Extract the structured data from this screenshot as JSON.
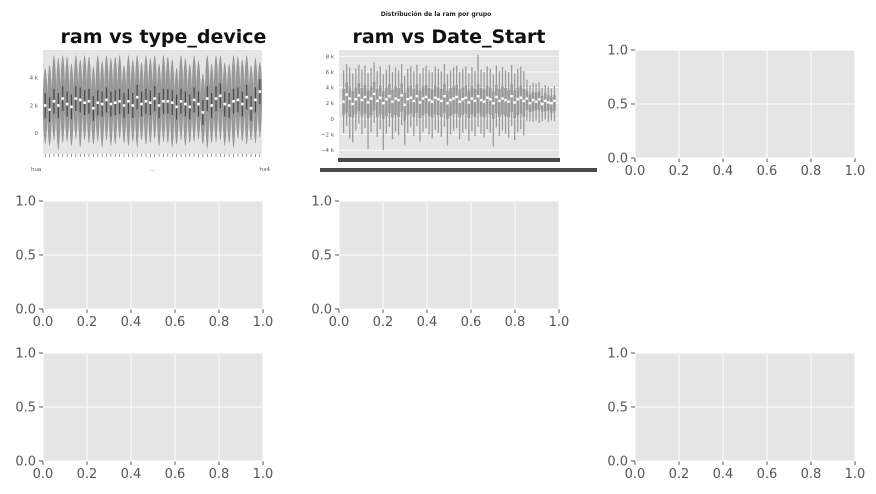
{
  "figure": {
    "suptitle": "Distribución de la ram por grupo",
    "background": "#ffffff",
    "axes_face": "#e5e5e5",
    "grid_color": "#ffffff",
    "violin_color": "#999999",
    "tick_color": "#555555"
  },
  "chart_data": [
    {
      "type": "violin",
      "title": "ram vs type_device",
      "xlabel": "",
      "ylabel": "",
      "ylim": [
        -1500,
        6000
      ],
      "yticks": [
        0,
        2000,
        4000
      ],
      "ytick_labels": [
        "0",
        "2 k",
        "4 k"
      ],
      "xtick_labels_visible": [
        "hua",
        "...",
        "hx4"
      ],
      "categories_count": 50,
      "series": [
        {
          "medians": [
            2000,
            1700,
            2300,
            2000,
            2500,
            2100,
            1900,
            2500,
            2400,
            2200,
            2300,
            1800,
            2200,
            2100,
            2400,
            2100,
            2200,
            2300,
            2000,
            2300,
            2000,
            2600,
            2100,
            2300,
            2200,
            2500,
            2000,
            2300,
            2300,
            2200,
            1900,
            2300,
            2100,
            1900,
            2400,
            2100,
            1500,
            2500,
            2000,
            2500,
            2700,
            2100,
            2000,
            2300,
            2400,
            2100,
            2600,
            1800,
            2400,
            3000
          ],
          "mins": [
            -800,
            -900,
            -500,
            -1200,
            -700,
            -600,
            -900,
            -400,
            -1000,
            -500,
            -700,
            -800,
            -600,
            -1000,
            -500,
            -900,
            -800,
            -400,
            -700,
            -900,
            -600,
            -1000,
            -500,
            -800,
            -700,
            -400,
            -900,
            -600,
            -700,
            -1000,
            -800,
            -500,
            -900,
            -700,
            -600,
            -400,
            -800,
            -1100,
            -700,
            -600,
            -500,
            -900,
            -700,
            -1000,
            -400,
            -600,
            -800,
            -500,
            -700,
            -300
          ],
          "maxs": [
            4700,
            4900,
            5600,
            5400,
            5600,
            5500,
            5000,
            5600,
            5300,
            5600,
            5500,
            4800,
            5600,
            5200,
            5600,
            5400,
            5500,
            5600,
            4900,
            5600,
            5300,
            5600,
            5100,
            5600,
            5400,
            5600,
            5000,
            5600,
            5500,
            5300,
            4700,
            5600,
            5400,
            5000,
            5600,
            5200,
            4300,
            5600,
            5000,
            5600,
            5600,
            5100,
            5000,
            5600,
            5500,
            5300,
            5600,
            4900,
            5400,
            5100
          ]
        }
      ]
    },
    {
      "type": "box",
      "title": "ram vs Date_Start",
      "xlabel": "",
      "ylabel": "",
      "ylim": [
        -5000,
        8800
      ],
      "yticks": [
        -4000,
        -2000,
        0,
        2000,
        4000,
        6000,
        8000
      ],
      "ytick_labels": [
        "−4 k",
        "−2 k",
        "0",
        "2 k",
        "4 k",
        "6 k",
        "8 k"
      ],
      "categories_count": 70,
      "series": [
        {
          "medians": [
            2200,
            3100,
            2600,
            1900,
            2500,
            3000,
            2400,
            2800,
            2100,
            2600,
            3200,
            2300,
            2700,
            2000,
            2500,
            2900,
            2200,
            2600,
            2400,
            3000,
            1800,
            2500,
            2700,
            2300,
            2900,
            2100,
            2600,
            2800,
            2400,
            2200,
            2700,
            2500,
            2300,
            2900,
            2000,
            2400,
            2600,
            2800,
            2200,
            2500,
            2700,
            2100,
            2600,
            2300,
            2900,
            2400,
            2200,
            2700,
            2500,
            2000,
            2800,
            2300,
            2600,
            2400,
            2200,
            2900,
            2100,
            2500,
            2700,
            2300,
            2600,
            2000,
            2400,
            2200,
            2500,
            1900,
            2300,
            2100,
            2000,
            2300
          ],
          "q1": [
            500,
            800,
            300,
            200,
            600,
            1000,
            400,
            700,
            100,
            500,
            1100,
            300,
            600,
            0,
            400,
            800,
            200,
            500,
            300,
            900,
            -200,
            500,
            700,
            300,
            800,
            100,
            500,
            700,
            400,
            200,
            600,
            500,
            300,
            800,
            0,
            400,
            600,
            700,
            200,
            500,
            700,
            100,
            600,
            300,
            800,
            400,
            200,
            700,
            500,
            0,
            800,
            300,
            600,
            400,
            200,
            900,
            100,
            500,
            700,
            300,
            1200,
            900,
            1000,
            1100,
            1200,
            900,
            1000,
            1100,
            800,
            1000
          ],
          "q3": [
            3800,
            4600,
            4100,
            3500,
            4000,
            4500,
            3900,
            4300,
            3600,
            4100,
            4700,
            3800,
            4200,
            3500,
            4000,
            4400,
            3700,
            4100,
            3900,
            4500,
            3300,
            4000,
            4200,
            3800,
            4400,
            3600,
            4100,
            4300,
            3900,
            3700,
            4200,
            4000,
            3800,
            4400,
            3500,
            3900,
            4100,
            4300,
            3700,
            4000,
            4200,
            3600,
            4100,
            3800,
            4400,
            3900,
            3700,
            4200,
            4000,
            3500,
            4300,
            3800,
            4100,
            3900,
            3700,
            4400,
            3600,
            4000,
            4200,
            3800,
            3600,
            3100,
            3400,
            3300,
            3500,
            2900,
            3200,
            3000,
            2800,
            3000
          ],
          "whisker_low": [
            -1800,
            -900,
            -2500,
            -3000,
            -1500,
            -600,
            -2000,
            -1200,
            -3800,
            -1700,
            -500,
            -2300,
            -1300,
            -4000,
            -1900,
            -1000,
            -2600,
            -1600,
            -2100,
            -800,
            -3300,
            -1800,
            -1100,
            -2200,
            -900,
            -2900,
            -1700,
            -1200,
            -2000,
            -2500,
            -1400,
            -1800,
            -2300,
            -1000,
            -3400,
            -2000,
            -1500,
            -1200,
            -2600,
            -1800,
            -1300,
            -2800,
            -1600,
            -2200,
            -1000,
            -1900,
            -2400,
            -1300,
            -1800,
            -3500,
            -1100,
            -2200,
            -1500,
            -1900,
            -2400,
            -900,
            -2700,
            -1700,
            -1300,
            -2100,
            -200,
            -300,
            -400,
            -200,
            -500,
            -300,
            -100,
            -400,
            -200,
            -300
          ],
          "whisker_high": [
            6200,
            7000,
            6600,
            5800,
            6400,
            6900,
            6300,
            6800,
            5900,
            6500,
            7200,
            6100,
            6700,
            5700,
            6300,
            6900,
            6000,
            6600,
            6200,
            7000,
            5500,
            6400,
            6700,
            6100,
            6900,
            5800,
            6500,
            6800,
            6200,
            6000,
            6700,
            6400,
            6100,
            7000,
            5700,
            6200,
            6600,
            6800,
            6000,
            6400,
            6700,
            5800,
            6600,
            6100,
            8200,
            6300,
            6000,
            6700,
            6400,
            5700,
            6800,
            6100,
            6600,
            6200,
            6000,
            6900,
            5800,
            6400,
            6700,
            6100,
            5000,
            4300,
            4600,
            4500,
            4700,
            4000,
            4300,
            4100,
            3900,
            4200
          ]
        }
      ]
    },
    {
      "type": "blank",
      "title": "",
      "xlim": [
        0,
        1
      ],
      "ylim": [
        0,
        1
      ],
      "xticks": [
        0,
        0.2,
        0.4,
        0.6,
        0.8,
        1
      ],
      "xtick_labels": [
        "0.0",
        "0.2",
        "0.4",
        "0.6",
        "0.8",
        "1.0"
      ],
      "yticks": [
        0,
        0.5,
        1
      ],
      "ytick_labels": [
        "0.0",
        "0.5",
        "1.0"
      ]
    },
    {
      "type": "blank",
      "title": "",
      "xlim": [
        0,
        1
      ],
      "ylim": [
        0,
        1
      ],
      "xticks": [
        0,
        0.2,
        0.4,
        0.6,
        0.8,
        1
      ],
      "xtick_labels": [
        "0.0",
        "0.2",
        "0.4",
        "0.6",
        "0.8",
        "1.0"
      ],
      "yticks": [
        0,
        0.5,
        1
      ],
      "ytick_labels": [
        "0.0",
        "0.5",
        "1.0"
      ]
    },
    {
      "type": "blank",
      "title": "",
      "xlim": [
        0,
        1
      ],
      "ylim": [
        0,
        1
      ],
      "xticks": [
        0,
        0.2,
        0.4,
        0.6,
        0.8,
        1
      ],
      "xtick_labels": [
        "0.0",
        "0.2",
        "0.4",
        "0.6",
        "0.8",
        "1.0"
      ],
      "yticks": [
        0,
        0.5,
        1
      ],
      "ytick_labels": [
        "0.0",
        "0.5",
        "1.0"
      ]
    },
    {
      "type": "blank",
      "title": "",
      "xlim": [
        0,
        1
      ],
      "ylim": [
        0,
        1
      ],
      "xticks": [
        0,
        0.2,
        0.4,
        0.6,
        0.8,
        1
      ],
      "xtick_labels": [
        "0.0",
        "0.2",
        "0.4",
        "0.6",
        "0.8",
        "1.0"
      ],
      "yticks": [
        0,
        0.5,
        1
      ],
      "ytick_labels": [
        "0.0",
        "0.5",
        "1.0"
      ]
    },
    {
      "type": "blank",
      "title": "",
      "xlim": [
        0,
        1
      ],
      "ylim": [
        0,
        1
      ],
      "xticks": [
        0,
        0.2,
        0.4,
        0.6,
        0.8,
        1
      ],
      "xtick_labels": [
        "0.0",
        "0.2",
        "0.4",
        "0.6",
        "0.8",
        "1.0"
      ],
      "yticks": [
        0,
        0.5,
        1
      ],
      "ytick_labels": [
        "0.0",
        "0.5",
        "1.0"
      ]
    }
  ]
}
